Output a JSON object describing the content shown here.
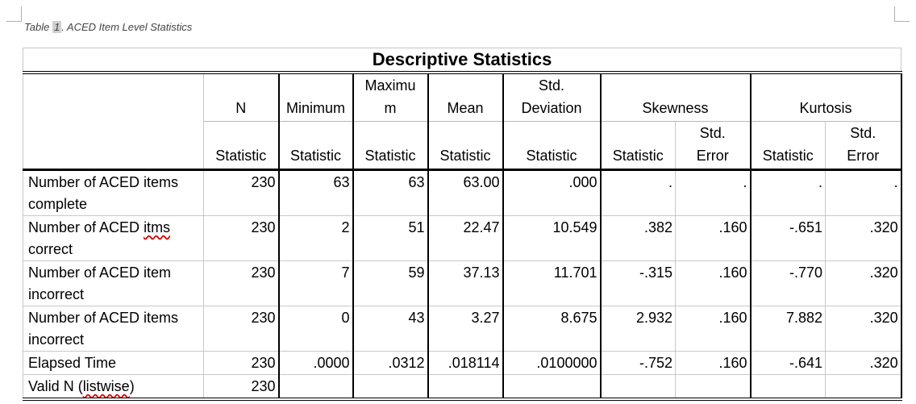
{
  "caption": {
    "prefix": "Table ",
    "number": "1",
    "text": ".  ACED Item Level Statistics"
  },
  "table": {
    "title": "Descriptive Statistics",
    "headers": {
      "n": "N",
      "minimum": "Minimum",
      "maximum_line1": "Maximu",
      "maximum_line2": "m",
      "mean": "Mean",
      "std_line1": "Std.",
      "std_line2": "Deviation",
      "skewness": "Skewness",
      "kurtosis": "Kurtosis"
    },
    "subheaders": {
      "statistic": "Statistic",
      "stderr_line1": "Std.",
      "stderr_line2": "Error"
    },
    "rows": [
      {
        "label": "Number of ACED items complete",
        "n": "230",
        "min": "63",
        "max": "63",
        "mean": "63.00",
        "sd": ".000",
        "skew": ".",
        "skew_se": ".",
        "kurt": ".",
        "kurt_se": "."
      },
      {
        "label_pre": "Number of ACED ",
        "label_spell": "itms",
        "label_post": " correct",
        "n": "230",
        "min": "2",
        "max": "51",
        "mean": "22.47",
        "sd": "10.549",
        "skew": ".382",
        "skew_se": ".160",
        "kurt": "-.651",
        "kurt_se": ".320"
      },
      {
        "label": "Number of ACED item incorrect",
        "n": "230",
        "min": "7",
        "max": "59",
        "mean": "37.13",
        "sd": "11.701",
        "skew": "-.315",
        "skew_se": ".160",
        "kurt": "-.770",
        "kurt_se": ".320"
      },
      {
        "label": "Number of ACED items incorrect",
        "n": "230",
        "min": "0",
        "max": "43",
        "mean": "3.27",
        "sd": "8.675",
        "skew": "2.932",
        "skew_se": ".160",
        "kurt": "7.882",
        "kurt_se": ".320"
      },
      {
        "label": "Elapsed Time",
        "n": "230",
        "min": ".0000",
        "max": ".0312",
        "mean": ".018114",
        "sd": ".0100000",
        "skew": "-.752",
        "skew_se": ".160",
        "kurt": "-.641",
        "kurt_se": ".320"
      },
      {
        "label_pre": "Valid N (",
        "label_spell": "listwise",
        "label_post": ")",
        "n": "230"
      }
    ]
  }
}
